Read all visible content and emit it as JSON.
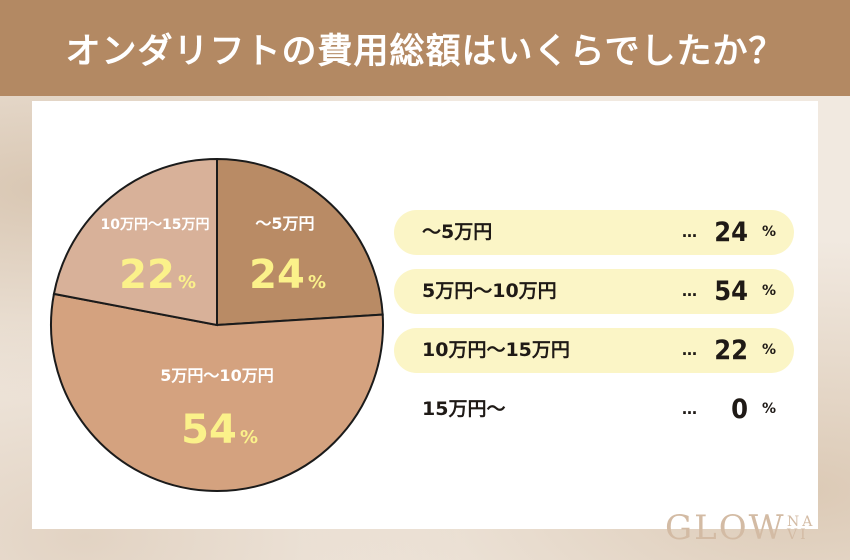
{
  "header": {
    "title": "オンダリフトの費用総額はいくらでしたか？"
  },
  "colors": {
    "header_bg": "#b38963",
    "slice_1": "#b98b65",
    "slice_2": "#d4a27f",
    "slice_3": "#d8b199",
    "label_text": "#ffffff",
    "value_text": "#fbf18a",
    "legend_highlight": "#fbf5c6"
  },
  "chart_data": {
    "type": "pie",
    "categories": [
      "〜5万円",
      "5万円〜10万円",
      "10万円〜15万円",
      "15万円〜"
    ],
    "values": [
      24,
      54,
      22,
      0
    ],
    "unit": "%"
  },
  "legend": {
    "dots": "…",
    "unit": "%",
    "items": [
      {
        "label": "〜5万円",
        "value": "24",
        "highlight": true
      },
      {
        "label": "5万円〜10万円",
        "value": "54",
        "highlight": true
      },
      {
        "label": "10万円〜15万円",
        "value": "22",
        "highlight": true
      },
      {
        "label": "15万円〜",
        "value": "0",
        "highlight": false
      }
    ]
  },
  "logo": {
    "text": "GLOW",
    "sub": "NA VI"
  }
}
